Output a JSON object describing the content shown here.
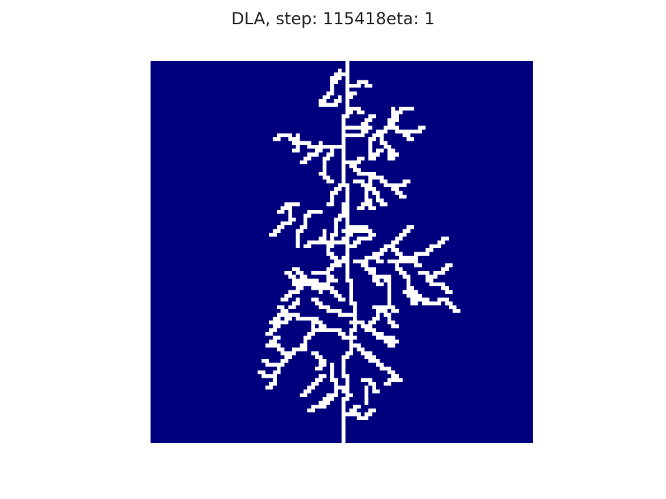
{
  "title": "DLA, step: 115418eta: 1",
  "chart_data": {
    "type": "heatmap",
    "title": "DLA, step: 115418eta: 1",
    "grid_size": [
      100,
      100
    ],
    "colormap": {
      "empty": "#00007f",
      "occupied": "#ffffff"
    },
    "grid": false,
    "axes_visible": false,
    "seed": [
      100,
      50
    ],
    "segments": [
      [
        [
          100,
          50
        ],
        [
          95,
          50
        ],
        [
          88,
          51
        ],
        [
          82,
          50
        ],
        [
          76,
          52
        ],
        [
          70,
          53
        ],
        [
          63,
          52
        ],
        [
          57,
          51
        ],
        [
          50,
          51
        ],
        [
          44,
          51
        ],
        [
          38,
          51
        ],
        [
          32,
          50
        ],
        [
          26,
          50
        ],
        [
          20,
          50
        ],
        [
          14,
          51
        ],
        [
          8,
          51
        ],
        [
          2,
          51
        ],
        [
          0,
          51
        ]
      ],
      [
        [
          3,
          51
        ],
        [
          5,
          47
        ],
        [
          8,
          46
        ],
        [
          10,
          44
        ]
      ],
      [
        [
          9,
          49
        ],
        [
          11,
          47
        ],
        [
          11,
          44
        ]
      ],
      [
        [
          9,
          51
        ],
        [
          8,
          53
        ]
      ],
      [
        [
          14,
          51
        ],
        [
          12,
          53
        ],
        [
          13,
          55
        ]
      ],
      [
        [
          17,
          51
        ],
        [
          17,
          55
        ],
        [
          14,
          58
        ]
      ],
      [
        [
          19,
          51
        ],
        [
          19,
          55
        ],
        [
          17,
          57
        ]
      ],
      [
        [
          12,
          63
        ],
        [
          15,
          62
        ],
        [
          18,
          65
        ],
        [
          20,
          68
        ]
      ],
      [
        [
          15,
          62
        ],
        [
          18,
          60
        ],
        [
          22,
          62
        ],
        [
          24,
          64
        ]
      ],
      [
        [
          18,
          60
        ],
        [
          20,
          57
        ],
        [
          24,
          58
        ]
      ],
      [
        [
          23,
          60
        ],
        [
          25,
          57
        ]
      ],
      [
        [
          18,
          67
        ],
        [
          17,
          71
        ]
      ],
      [
        [
          22,
          50
        ],
        [
          22,
          44
        ],
        [
          21,
          40
        ],
        [
          19,
          35
        ],
        [
          20,
          32
        ]
      ],
      [
        [
          21,
          44
        ],
        [
          24,
          42
        ],
        [
          26,
          39
        ]
      ],
      [
        [
          22,
          47
        ],
        [
          25,
          45
        ],
        [
          29,
          44
        ],
        [
          31,
          47
        ]
      ],
      [
        [
          19,
          38
        ],
        [
          23,
          37
        ]
      ],
      [
        [
          26,
          50
        ],
        [
          29,
          55
        ],
        [
          30,
          59
        ],
        [
          32,
          62
        ],
        [
          35,
          66
        ]
      ],
      [
        [
          30,
          57
        ],
        [
          34,
          59
        ],
        [
          37,
          61
        ]
      ],
      [
        [
          32,
          63
        ],
        [
          31,
          67
        ]
      ],
      [
        [
          27,
          52
        ],
        [
          25,
          55
        ]
      ],
      [
        [
          32,
          50
        ],
        [
          34,
          47
        ],
        [
          37,
          46
        ]
      ],
      [
        [
          37,
          50
        ],
        [
          41,
          48
        ],
        [
          45,
          47
        ],
        [
          48,
          47
        ]
      ],
      [
        [
          39,
          44
        ],
        [
          40,
          40
        ],
        [
          44,
          38
        ],
        [
          48,
          38
        ]
      ],
      [
        [
          38,
          36
        ],
        [
          41,
          37
        ],
        [
          42,
          35
        ],
        [
          45,
          31
        ]
      ],
      [
        [
          37,
          38
        ],
        [
          39,
          33
        ]
      ],
      [
        [
          44,
          45
        ],
        [
          47,
          43
        ],
        [
          48,
          40
        ]
      ],
      [
        [
          47,
          46
        ],
        [
          51,
          48
        ],
        [
          54,
          46
        ],
        [
          58,
          45
        ]
      ],
      [
        [
          50,
          51
        ],
        [
          53,
          48
        ]
      ],
      [
        [
          48,
          52
        ],
        [
          46,
          55
        ],
        [
          46,
          57
        ]
      ],
      [
        [
          52,
          53
        ],
        [
          54,
          57
        ],
        [
          56,
          59
        ],
        [
          57,
          62
        ]
      ],
      [
        [
          53,
          55
        ],
        [
          51,
          57
        ],
        [
          52,
          60
        ]
      ],
      [
        [
          50,
          58
        ],
        [
          48,
          62
        ],
        [
          45,
          66
        ],
        [
          43,
          68
        ]
      ],
      [
        [
          47,
          63
        ],
        [
          51,
          66
        ],
        [
          53,
          70
        ]
      ],
      [
        [
          53,
          64
        ],
        [
          56,
          67
        ]
      ],
      [
        [
          55,
          70
        ],
        [
          56,
          73
        ],
        [
          55,
          75
        ],
        [
          53,
          78
        ]
      ],
      [
        [
          55,
          72
        ],
        [
          58,
          74
        ],
        [
          60,
          78
        ]
      ],
      [
        [
          57,
          67
        ],
        [
          61,
          70
        ],
        [
          63,
          72
        ],
        [
          62,
          76
        ]
      ],
      [
        [
          62,
          72
        ],
        [
          63,
          68
        ],
        [
          60,
          66
        ]
      ],
      [
        [
          56,
          62
        ],
        [
          62,
          62
        ],
        [
          65,
          64
        ]
      ],
      [
        [
          52,
          62
        ],
        [
          50,
          70
        ],
        [
          48,
          74
        ],
        [
          46,
          77
        ]
      ],
      [
        [
          62,
          75
        ],
        [
          65,
          80
        ]
      ],
      [
        [
          54,
          58
        ],
        [
          58,
          60
        ]
      ],
      [
        [
          68,
          52
        ],
        [
          70,
          57
        ],
        [
          72,
          60
        ],
        [
          73,
          64
        ]
      ],
      [
        [
          70,
          57
        ],
        [
          67,
          59
        ],
        [
          64,
          61
        ]
      ],
      [
        [
          71,
          60
        ],
        [
          74,
          63
        ]
      ],
      [
        [
          74,
          52
        ],
        [
          75,
          55
        ],
        [
          78,
          58
        ]
      ],
      [
        [
          76,
          57
        ],
        [
          80,
          61
        ],
        [
          83,
          65
        ]
      ],
      [
        [
          81,
          63
        ],
        [
          84,
          61
        ]
      ],
      [
        [
          72,
          53
        ],
        [
          70,
          48
        ],
        [
          70,
          43
        ]
      ],
      [
        [
          70,
          45
        ],
        [
          67,
          42
        ],
        [
          66,
          37
        ],
        [
          64,
          33
        ]
      ],
      [
        [
          66,
          38
        ],
        [
          68,
          34
        ],
        [
          71,
          30
        ]
      ],
      [
        [
          68,
          42
        ],
        [
          72,
          40
        ],
        [
          75,
          38
        ]
      ],
      [
        [
          75,
          40
        ],
        [
          76,
          36
        ],
        [
          74,
          32
        ]
      ],
      [
        [
          76,
          42
        ],
        [
          78,
          45
        ],
        [
          80,
          43
        ]
      ],
      [
        [
          79,
          47
        ],
        [
          83,
          48
        ],
        [
          87,
          47
        ],
        [
          89,
          44
        ]
      ],
      [
        [
          82,
          45
        ],
        [
          84,
          42
        ],
        [
          87,
          39
        ]
      ],
      [
        [
          85,
          49
        ],
        [
          87,
          52
        ]
      ],
      [
        [
          88,
          47
        ],
        [
          90,
          44
        ],
        [
          91,
          41
        ]
      ],
      [
        [
          92,
          52
        ],
        [
          93,
          55
        ],
        [
          91,
          58
        ]
      ],
      [
        [
          83,
          55
        ],
        [
          84,
          58
        ],
        [
          86,
          59
        ]
      ],
      [
        [
          62,
          50
        ],
        [
          59,
          46
        ],
        [
          58,
          41
        ],
        [
          60,
          37
        ],
        [
          62,
          34
        ]
      ],
      [
        [
          60,
          44
        ],
        [
          57,
          42
        ],
        [
          56,
          39
        ],
        [
          54,
          37
        ]
      ],
      [
        [
          66,
          52
        ],
        [
          65,
          48
        ],
        [
          64,
          45
        ]
      ],
      [
        [
          64,
          46
        ],
        [
          62,
          42
        ]
      ],
      [
        [
          57,
          48
        ],
        [
          55,
          45
        ],
        [
          55,
          42
        ]
      ],
      [
        [
          57,
          42
        ],
        [
          58,
          37
        ],
        [
          55,
          35
        ]
      ],
      [
        [
          62,
          38
        ],
        [
          64,
          36
        ]
      ],
      [
        [
          66,
          36
        ],
        [
          68,
          31
        ]
      ],
      [
        [
          77,
          36
        ],
        [
          79,
          33
        ],
        [
          78,
          29
        ]
      ],
      [
        [
          79,
          33
        ],
        [
          82,
          31
        ],
        [
          81,
          28
        ]
      ],
      [
        [
          83,
          32
        ],
        [
          85,
          30
        ]
      ],
      [
        [
          72,
          33
        ],
        [
          74,
          30
        ]
      ],
      [
        [
          44,
          52
        ],
        [
          43,
          56
        ],
        [
          45,
          58
        ]
      ],
      [
        [
          45,
          52
        ],
        [
          47,
          49
        ],
        [
          46,
          44
        ]
      ],
      [
        [
          31,
          53
        ],
        [
          32,
          56
        ],
        [
          36,
          57
        ],
        [
          38,
          58
        ]
      ],
      [
        [
          36,
          56
        ],
        [
          38,
          54
        ]
      ],
      [
        [
          43,
          54
        ],
        [
          44,
          50
        ]
      ],
      [
        [
          6,
          51
        ],
        [
          5,
          55
        ],
        [
          6,
          57
        ]
      ],
      [
        [
          2,
          49
        ],
        [
          4,
          47
        ]
      ],
      [
        [
          15,
          64
        ],
        [
          12,
          66
        ],
        [
          12,
          68
        ]
      ],
      [
        [
          23,
          62
        ],
        [
          25,
          63
        ]
      ],
      [
        [
          64,
          58
        ],
        [
          66,
          62
        ],
        [
          69,
          64
        ]
      ],
      [
        [
          85,
          56
        ],
        [
          89,
          56
        ]
      ],
      [
        [
          90,
          54
        ],
        [
          92,
          51
        ]
      ]
    ]
  }
}
